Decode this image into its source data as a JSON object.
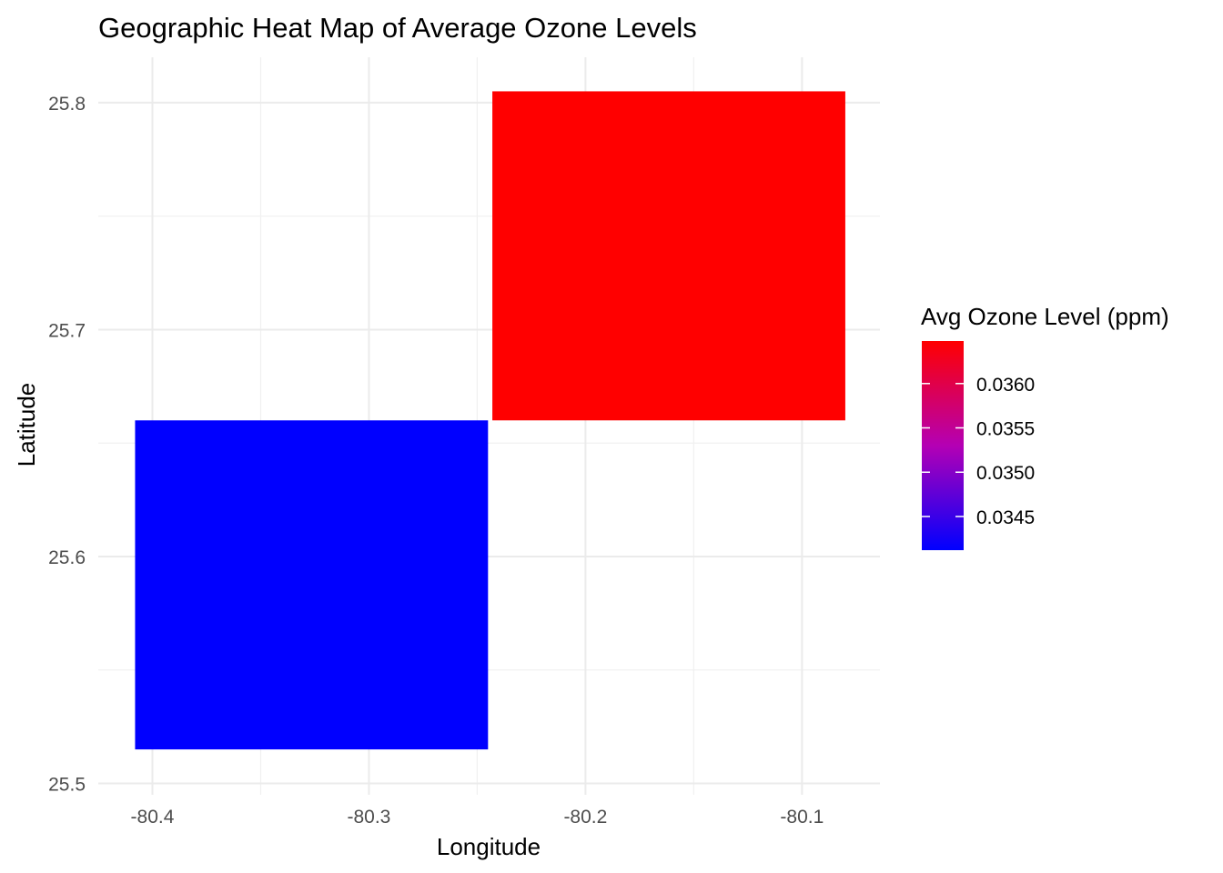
{
  "chart_data": {
    "type": "heatmap",
    "title": "Geographic Heat Map of Average Ozone Levels",
    "xlabel": "Longitude",
    "ylabel": "Latitude",
    "xlim": [
      -80.425,
      -80.064
    ],
    "ylim": [
      25.495,
      25.82
    ],
    "x_ticks": [
      -80.4,
      -80.3,
      -80.2,
      -80.1
    ],
    "x_tick_labels": [
      "-80.4",
      "-80.3",
      "-80.2",
      "-80.1"
    ],
    "y_ticks": [
      25.5,
      25.6,
      25.7,
      25.8
    ],
    "y_tick_labels": [
      "25.5",
      "25.6",
      "25.7",
      "25.8"
    ],
    "grid": true,
    "tiles": [
      {
        "x": -80.3265,
        "y": 25.5875,
        "width": 0.163,
        "height": 0.145,
        "value": 0.03412
      },
      {
        "x": -80.1615,
        "y": 25.7325,
        "width": 0.163,
        "height": 0.145,
        "value": 0.03648
      }
    ],
    "legend": {
      "title": "Avg Ozone Level (ppm)",
      "position": "right",
      "min": 0.03412,
      "max": 0.03648,
      "low_color": "#0000FF",
      "high_color": "#FF0000",
      "breaks": [
        0.0345,
        0.035,
        0.0355,
        0.036
      ],
      "break_labels": [
        "0.0345",
        "0.0350",
        "0.0355",
        "0.0360"
      ]
    }
  }
}
